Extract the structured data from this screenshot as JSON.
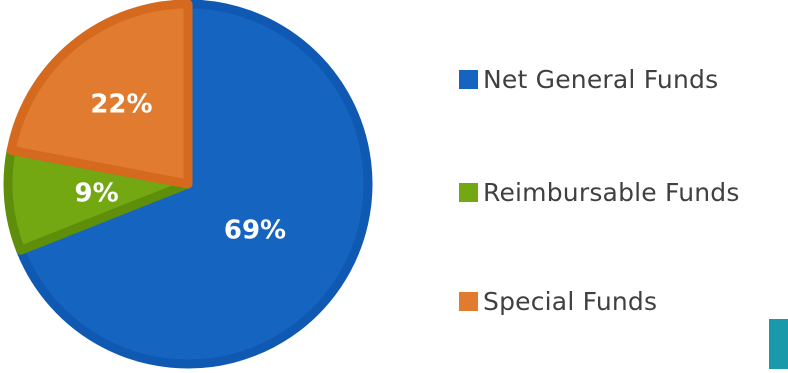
{
  "chart_data": {
    "type": "pie",
    "title": "",
    "categories": [
      "Net General Funds",
      "Reimbursable Funds",
      "Special Funds"
    ],
    "values": [
      69,
      9,
      22
    ],
    "labels": [
      "69%",
      "9%",
      "22%"
    ],
    "colors": [
      "#1565c0",
      "#74a813",
      "#e07b2f"
    ],
    "border_colors": [
      "#0f59b3",
      "#5f8e0b",
      "#d56a1f"
    ],
    "legend_position": "right",
    "start_angle_deg": 0,
    "direction": "clockwise"
  },
  "legend": {
    "items": [
      {
        "label": "Net General Funds",
        "color": "#1565c0"
      },
      {
        "label": "Reimbursable Funds",
        "color": "#74a813"
      },
      {
        "label": "Special Funds",
        "color": "#e07b2f"
      }
    ]
  },
  "decoration": {
    "accent_color": "#1a99aa"
  }
}
